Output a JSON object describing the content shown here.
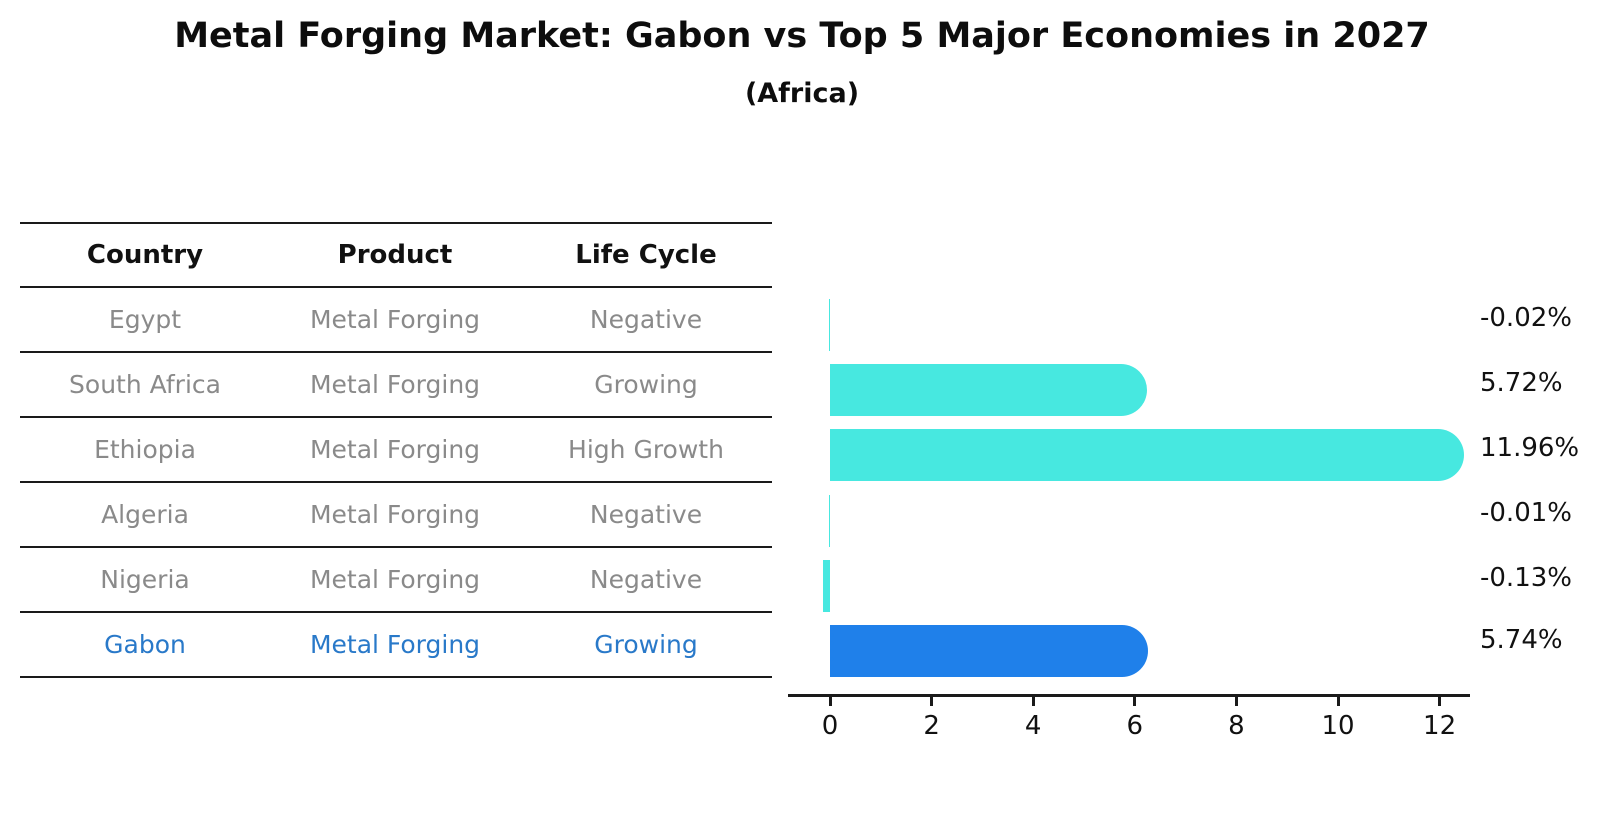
{
  "title": "Metal Forging Market: Gabon vs Top 5 Major Economies in 2027",
  "subtitle": "(Africa)",
  "table": {
    "columns": [
      "Country",
      "Product",
      "Life Cycle"
    ],
    "rows": [
      {
        "country": "Egypt",
        "product": "Metal Forging",
        "life_cycle": "Negative",
        "highlight": false
      },
      {
        "country": "South Africa",
        "product": "Metal Forging",
        "life_cycle": "Growing",
        "highlight": false
      },
      {
        "country": "Ethiopia",
        "product": "Metal Forging",
        "life_cycle": "High Growth",
        "highlight": false
      },
      {
        "country": "Algeria",
        "product": "Metal Forging",
        "life_cycle": "Negative",
        "highlight": false
      },
      {
        "country": "Nigeria",
        "product": "Metal Forging",
        "life_cycle": "Negative",
        "highlight": false
      },
      {
        "country": "Gabon",
        "product": "Metal Forging",
        "life_cycle": "Growing",
        "highlight": true
      }
    ]
  },
  "chart_data": {
    "type": "bar",
    "orientation": "horizontal",
    "title": "Metal Forging Market: Gabon vs Top 5 Major Economies in 2027",
    "subtitle": "(Africa)",
    "categories": [
      "Egypt",
      "South Africa",
      "Ethiopia",
      "Algeria",
      "Nigeria",
      "Gabon"
    ],
    "values": [
      -0.02,
      5.72,
      11.96,
      -0.01,
      -0.13,
      5.74
    ],
    "value_labels": [
      "-0.02%",
      "5.72%",
      "11.96%",
      "-0.01%",
      "-0.13%",
      "5.74%"
    ],
    "unit": "%",
    "x_ticks": [
      0,
      2,
      4,
      6,
      8,
      10,
      12
    ],
    "xlim": [
      -0.8,
      12.6
    ],
    "grid": false,
    "legend": false,
    "highlight_index": 5,
    "colors": {
      "bar": "#47E8E0",
      "highlight_bar": "#1F80EA",
      "highlight_text": "#2979C9",
      "axis": "#1a1a1a",
      "muted_text": "#8a8a8a",
      "label_text": "#111111"
    }
  }
}
